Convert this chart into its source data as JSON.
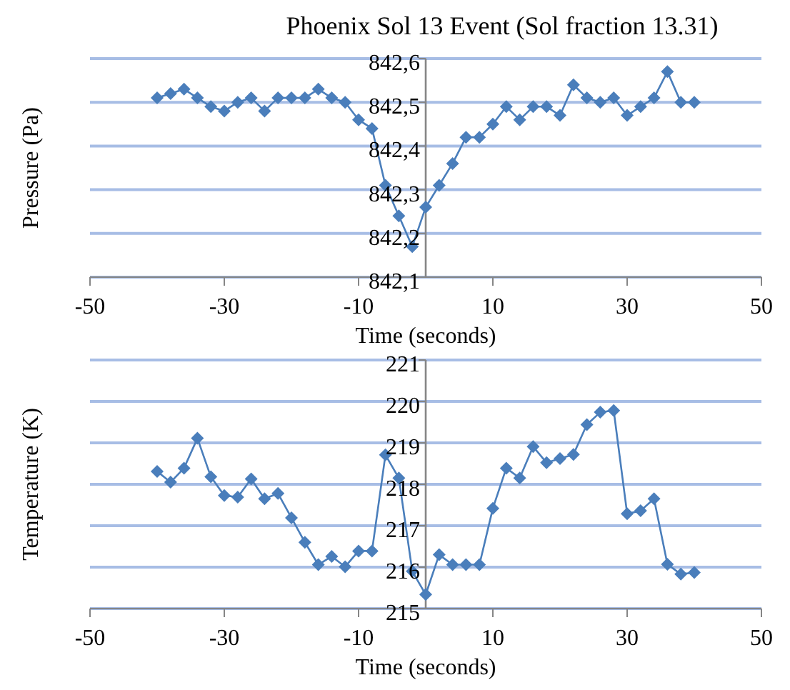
{
  "chart_data": [
    {
      "type": "line",
      "title": "Phoenix Sol 13 Event (Sol fraction 13.31)",
      "xlabel": "Time (seconds)",
      "ylabel": "Pressure (Pa)",
      "marker": "diamond",
      "grid": "y",
      "line_style": "solid",
      "x": [
        -40,
        -38,
        -36,
        -34,
        -32,
        -30,
        -28,
        -26,
        -24,
        -22,
        -20,
        -18,
        -16,
        -14,
        -12,
        -10,
        -8,
        -6,
        -4,
        -2,
        0,
        2,
        4,
        6,
        8,
        10,
        12,
        14,
        16,
        18,
        20,
        22,
        24,
        26,
        28,
        30,
        32,
        34,
        36,
        38,
        40
      ],
      "series": [
        {
          "color": "#4a7ebb",
          "values": [
            842.51,
            842.52,
            842.53,
            842.51,
            842.49,
            842.48,
            842.5,
            842.51,
            842.48,
            842.51,
            842.51,
            842.51,
            842.53,
            842.51,
            842.5,
            842.46,
            842.44,
            842.31,
            842.24,
            842.17,
            842.26,
            842.31,
            842.36,
            842.42,
            842.42,
            842.45,
            842.49,
            842.46,
            842.49,
            842.49,
            842.47,
            842.54,
            842.51,
            842.5,
            842.51,
            842.47,
            842.49,
            842.51,
            842.57,
            842.5,
            842.5
          ]
        }
      ],
      "xlim": [
        -50,
        50
      ],
      "xticks": [
        -50,
        -30,
        -10,
        10,
        30,
        50
      ],
      "ylim": [
        842.1,
        842.6
      ],
      "yticks": [
        {
          "value": 842.1,
          "label": "842,1"
        },
        {
          "value": 842.2,
          "label": "842,2"
        },
        {
          "value": 842.3,
          "label": "842,3"
        },
        {
          "value": 842.4,
          "label": "842,4"
        },
        {
          "value": 842.5,
          "label": "842,5"
        },
        {
          "value": 842.6,
          "label": "842,6"
        }
      ]
    },
    {
      "type": "line",
      "xlabel": "Time (seconds)",
      "ylabel": "Temperature (K)",
      "marker": "diamond",
      "grid": "y",
      "line_style": "solid",
      "x": [
        -40,
        -38,
        -36,
        -34,
        -32,
        -30,
        -28,
        -26,
        -24,
        -22,
        -20,
        -18,
        -16,
        -14,
        -12,
        -10,
        -8,
        -6,
        -4,
        -2,
        0,
        2,
        4,
        6,
        8,
        10,
        12,
        14,
        16,
        18,
        20,
        22,
        24,
        26,
        28,
        30,
        32,
        34,
        36,
        38,
        40
      ],
      "series": [
        {
          "color": "#4a7ebb",
          "values": [
            218.31,
            218.05,
            218.39,
            219.11,
            218.18,
            217.73,
            217.69,
            218.13,
            217.65,
            217.78,
            217.19,
            216.6,
            216.06,
            216.26,
            216.01,
            216.39,
            216.39,
            218.71,
            218.15,
            215.9,
            215.34,
            216.3,
            216.06,
            216.06,
            216.06,
            217.42,
            218.39,
            218.15,
            218.91,
            218.52,
            218.62,
            218.72,
            219.44,
            219.74,
            219.78,
            217.29,
            217.36,
            217.65,
            216.07,
            215.83,
            215.87
          ]
        }
      ],
      "xlim": [
        -50,
        50
      ],
      "xticks": [
        -50,
        -30,
        -10,
        10,
        30,
        50
      ],
      "ylim": [
        215,
        221
      ],
      "yticks": [
        215,
        216,
        217,
        218,
        219,
        220,
        221
      ]
    }
  ]
}
